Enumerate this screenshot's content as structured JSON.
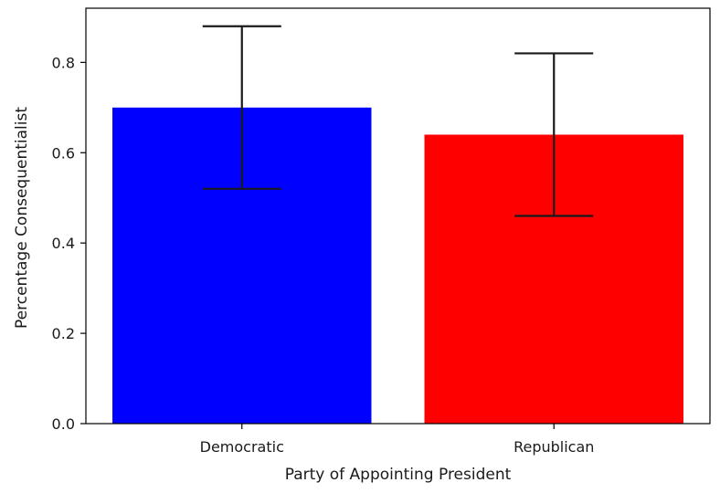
{
  "chart_data": {
    "type": "bar",
    "title": "",
    "xlabel": "Party of Appointing President",
    "ylabel": "Percentage Consequentialist",
    "categories": [
      "Democratic",
      "Republican"
    ],
    "values": [
      0.7,
      0.64
    ],
    "error_low": [
      0.52,
      0.46
    ],
    "error_high": [
      0.88,
      0.82
    ],
    "colors": [
      "#0000ff",
      "#ff0000"
    ],
    "error_color": "#1a1a1a",
    "ylim": [
      0,
      0.92
    ],
    "yticks": [
      0.0,
      0.2,
      0.4,
      0.6,
      0.8
    ],
    "ytick_labels": [
      "0.0",
      "0.2",
      "0.4",
      "0.6",
      "0.8"
    ],
    "grid": false,
    "legend": "none"
  }
}
